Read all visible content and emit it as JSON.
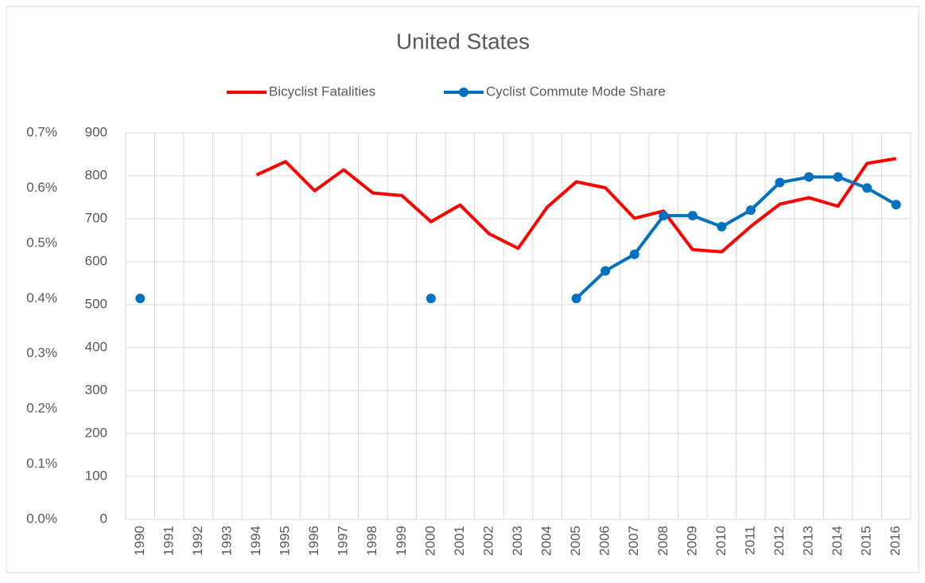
{
  "chart_data": {
    "type": "line",
    "title": "United States",
    "categories": [
      "1990",
      "1991",
      "1992",
      "1993",
      "1994",
      "1995",
      "1996",
      "1997",
      "1998",
      "1999",
      "2000",
      "2001",
      "2002",
      "2003",
      "2004",
      "2005",
      "2006",
      "2007",
      "2008",
      "2009",
      "2010",
      "2011",
      "2012",
      "2013",
      "2014",
      "2015",
      "2016"
    ],
    "series": [
      {
        "name": "Bicyclist Fatalities",
        "color": "#ff0000",
        "axis": "y",
        "values": [
          null,
          null,
          null,
          null,
          802,
          833,
          765,
          814,
          760,
          754,
          693,
          732,
          665,
          631,
          727,
          786,
          772,
          701,
          718,
          628,
          623,
          682,
          734,
          749,
          729,
          829,
          840
        ]
      },
      {
        "name": "Cyclist Commute Mode Share",
        "color": "#0070c0",
        "axis": "y2",
        "markers": true,
        "values": [
          0.4,
          null,
          null,
          null,
          null,
          null,
          null,
          null,
          null,
          null,
          0.4,
          null,
          null,
          null,
          null,
          0.4,
          0.45,
          0.48,
          0.55,
          0.55,
          0.53,
          0.56,
          0.61,
          0.62,
          0.62,
          0.6,
          0.57
        ]
      }
    ],
    "ylim": [
      0,
      900
    ],
    "yticks": [
      0,
      100,
      200,
      300,
      400,
      500,
      600,
      700,
      800,
      900
    ],
    "y2lim": [
      0,
      0.7
    ],
    "y2ticks": [
      {
        "value": 0,
        "label": "0.0%"
      },
      {
        "value": 0.1,
        "label": "0.1%"
      },
      {
        "value": 0.2,
        "label": "0.2%"
      },
      {
        "value": 0.3,
        "label": "0.3%"
      },
      {
        "value": 0.4,
        "label": "0.4%"
      },
      {
        "value": 0.5,
        "label": "0.5%"
      },
      {
        "value": 0.6,
        "label": "0.6%"
      },
      {
        "value": 0.7,
        "label": "0.7%"
      }
    ],
    "grid": true,
    "legend": "top"
  }
}
